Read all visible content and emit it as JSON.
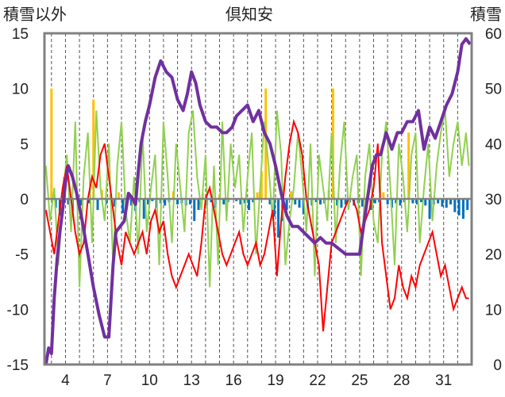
{
  "chart_data": {
    "type": "line",
    "title": "倶知安",
    "ylabel_left": "積雪以外",
    "ylabel_right": "積雪",
    "ylim_left": [
      -15,
      15
    ],
    "ylim_right": [
      0,
      60
    ],
    "yticks_left": [
      "15",
      "10",
      "5",
      "0",
      "-5",
      "-10",
      "-15"
    ],
    "yticks_right": [
      "60",
      "50",
      "40",
      "30",
      "20",
      "10",
      "0"
    ],
    "xlim": [
      2.5,
      33.0
    ],
    "xticks": [
      "4",
      "7",
      "10",
      "13",
      "16",
      "19",
      "22",
      "25",
      "28",
      "31"
    ],
    "grid": "vertical dashed daily",
    "colors": {
      "temperature": "#ff0000",
      "wind": "#92d050",
      "snow_depth": "#7030a0",
      "precipitation_pos": "#ffc000",
      "precipitation_neg": "#0070c0",
      "frame": "#808080"
    },
    "series": [
      {
        "name": "snow_depth",
        "axis": "right",
        "x": [
          2.6,
          2.8,
          3.0,
          3.2,
          3.4,
          3.6,
          3.8,
          4.0,
          4.2,
          4.5,
          4.8,
          5.2,
          5.6,
          6.0,
          6.4,
          6.8,
          7.1,
          7.4,
          7.6,
          7.9,
          8.2,
          8.5,
          8.8,
          9.0,
          9.2,
          9.4,
          9.7,
          10.0,
          10.4,
          10.8,
          11.2,
          11.6,
          12.0,
          12.4,
          12.7,
          13.0,
          13.3,
          13.6,
          14.0,
          14.4,
          14.8,
          15.2,
          15.5,
          15.9,
          16.2,
          16.6,
          17.0,
          17.4,
          17.8,
          18.2,
          18.6,
          19.0,
          19.4,
          19.8,
          20.2,
          20.6,
          21.0,
          21.4,
          21.8,
          22.2,
          22.6,
          23.0,
          23.5,
          24.0,
          24.5,
          25.0,
          25.5,
          25.9,
          26.2,
          26.5,
          26.9,
          27.3,
          27.7,
          28.0,
          28.4,
          28.8,
          29.2,
          29.6,
          30.0,
          30.4,
          30.8,
          31.2,
          31.6,
          32.0,
          32.3,
          32.6,
          32.9
        ],
        "values": [
          0,
          3,
          2,
          12,
          19,
          24,
          28,
          33,
          36,
          34,
          31,
          26,
          20,
          14,
          9,
          5,
          5,
          18,
          24,
          25,
          26,
          31,
          30,
          29,
          35,
          40,
          44,
          47,
          52,
          55,
          53,
          52,
          48,
          46,
          49,
          53,
          51,
          47,
          44,
          43,
          43,
          42,
          42,
          43,
          45,
          46,
          47,
          44,
          46,
          42,
          40,
          36,
          31,
          27,
          25,
          25,
          24,
          23,
          22,
          23,
          22,
          22,
          21,
          20,
          20,
          20,
          29,
          36,
          38,
          38,
          42,
          39,
          42,
          42,
          44,
          44,
          46,
          39,
          43,
          41,
          44,
          47,
          49,
          53,
          58,
          59,
          58
        ]
      },
      {
        "name": "temperature",
        "axis": "left",
        "x": [
          2.6,
          2.9,
          3.2,
          3.5,
          3.8,
          4.1,
          4.4,
          4.7,
          5.0,
          5.3,
          5.6,
          5.9,
          6.2,
          6.5,
          6.8,
          7.1,
          7.4,
          7.7,
          8.0,
          8.3,
          8.6,
          8.9,
          9.2,
          9.5,
          9.8,
          10.1,
          10.4,
          10.7,
          11.0,
          11.3,
          11.6,
          11.9,
          12.2,
          12.5,
          12.8,
          13.1,
          13.4,
          13.7,
          14.0,
          14.3,
          14.6,
          14.9,
          15.2,
          15.5,
          15.8,
          16.1,
          16.4,
          16.7,
          17.0,
          17.3,
          17.6,
          17.9,
          18.2,
          18.5,
          18.8,
          19.1,
          19.4,
          19.7,
          20.0,
          20.3,
          20.6,
          20.9,
          21.2,
          21.5,
          21.8,
          22.1,
          22.4,
          22.7,
          23.0,
          23.3,
          23.6,
          23.9,
          24.2,
          24.5,
          24.8,
          25.1,
          25.4,
          25.7,
          26.0,
          26.3,
          26.6,
          26.9,
          27.2,
          27.5,
          27.8,
          28.1,
          28.4,
          28.7,
          29.0,
          29.3,
          29.6,
          29.9,
          30.2,
          30.5,
          30.8,
          31.1,
          31.4,
          31.7,
          32.0,
          32.3,
          32.6,
          32.8
        ],
        "values": [
          -1,
          -3,
          -5,
          -2,
          1,
          3,
          0,
          -3,
          -5,
          -4,
          0,
          2,
          1,
          4,
          5,
          2,
          -1,
          -4,
          -6,
          -3,
          -4,
          -5,
          -4,
          -3,
          -5,
          -2,
          -1,
          -3,
          -2,
          -5,
          -7,
          -8,
          -7,
          -6,
          -5,
          -6,
          -7,
          -4,
          0,
          1,
          -1,
          -3,
          -5,
          -6,
          -5,
          -4,
          -3,
          -5,
          -6,
          -5,
          -4,
          -6,
          -5,
          -3,
          -1,
          -7,
          -2,
          2,
          5,
          7,
          6,
          4,
          0,
          -2,
          -4,
          -6,
          -12,
          -8,
          -4,
          -3,
          -2,
          -1,
          0,
          0,
          -1,
          -3,
          -2,
          -1,
          1,
          5,
          -4,
          -7,
          -10,
          -9,
          -6,
          -8,
          -9,
          -7,
          -8,
          -6,
          -5,
          -4,
          -3,
          -5,
          -7,
          -6,
          -8,
          -10,
          -9,
          -8,
          -9,
          -9
        ]
      },
      {
        "name": "wind",
        "axis": "left",
        "x": [
          2.6,
          2.9,
          3.2,
          3.5,
          3.8,
          4.1,
          4.4,
          4.7,
          5.0,
          5.3,
          5.6,
          5.9,
          6.2,
          6.5,
          6.8,
          7.1,
          7.4,
          7.7,
          8.0,
          8.3,
          8.6,
          8.9,
          9.2,
          9.5,
          9.8,
          10.1,
          10.4,
          10.7,
          11.0,
          11.3,
          11.6,
          11.9,
          12.2,
          12.5,
          12.8,
          13.1,
          13.4,
          13.7,
          14.0,
          14.3,
          14.6,
          14.9,
          15.2,
          15.5,
          15.8,
          16.1,
          16.4,
          16.7,
          17.0,
          17.3,
          17.6,
          17.9,
          18.2,
          18.5,
          18.8,
          19.1,
          19.4,
          19.7,
          20.0,
          20.3,
          20.6,
          20.9,
          21.2,
          21.5,
          21.8,
          22.1,
          22.4,
          22.7,
          23.0,
          23.3,
          23.6,
          23.9,
          24.2,
          24.5,
          24.8,
          25.1,
          25.4,
          25.7,
          26.0,
          26.3,
          26.6,
          26.9,
          27.2,
          27.5,
          27.8,
          28.1,
          28.4,
          28.7,
          29.0,
          29.3,
          29.6,
          29.9,
          30.2,
          30.5,
          30.8,
          31.1,
          31.4,
          31.7,
          32.0,
          32.3,
          32.6,
          32.8
        ],
        "values": [
          3,
          -2,
          1,
          -6,
          0,
          4,
          -3,
          7,
          -8,
          2,
          6,
          -4,
          8,
          1,
          -2,
          5,
          -6,
          3,
          7,
          -1,
          -4,
          2,
          -5,
          6,
          -3,
          1,
          4,
          -6,
          7,
          2,
          -4,
          5,
          1,
          -3,
          6,
          8,
          2,
          -1,
          4,
          -8,
          3,
          -6,
          7,
          -2,
          5,
          1,
          4,
          -3,
          2,
          6,
          -5,
          1,
          7,
          3,
          -2,
          8,
          4,
          -6,
          -2,
          1,
          6,
          2,
          -3,
          5,
          -7,
          4,
          1,
          -2,
          6,
          -4,
          3,
          7,
          -1,
          2,
          4,
          -7,
          2,
          5,
          -2,
          -4,
          4,
          7,
          1,
          -6,
          5,
          2,
          -3,
          4,
          6,
          -4,
          1,
          5,
          -2,
          3,
          6,
          8,
          2,
          5,
          7,
          3,
          6,
          3
        ]
      },
      {
        "name": "precipitation",
        "axis": "left",
        "x": [
          3.0,
          3.3,
          3.6,
          3.9,
          4.2,
          4.5,
          4.8,
          5.1,
          5.4,
          5.7,
          6.0,
          6.3,
          6.6,
          6.9,
          7.2,
          7.5,
          7.8,
          8.1,
          8.4,
          8.7,
          9.0,
          9.3,
          9.6,
          9.9,
          10.2,
          10.5,
          10.8,
          11.1,
          11.4,
          11.7,
          12.0,
          12.3,
          12.6,
          12.9,
          13.2,
          13.5,
          13.8,
          14.1,
          14.4,
          14.7,
          15.0,
          15.3,
          15.6,
          15.9,
          16.2,
          16.5,
          16.8,
          17.1,
          17.4,
          17.7,
          18.0,
          18.3,
          18.6,
          18.9,
          19.2,
          19.5,
          19.8,
          20.1,
          20.4,
          20.7,
          21.0,
          21.3,
          21.6,
          21.9,
          22.2,
          22.5,
          22.8,
          23.1,
          23.4,
          23.7,
          24.0,
          24.3,
          24.6,
          24.9,
          25.2,
          25.5,
          25.8,
          26.1,
          26.4,
          26.7,
          27.0,
          27.3,
          27.6,
          27.9,
          28.2,
          28.5,
          28.8,
          29.1,
          29.4,
          29.7,
          30.0,
          30.3,
          30.6,
          30.9,
          31.2,
          31.5,
          31.8,
          32.1,
          32.4,
          32.7
        ],
        "values": [
          10,
          -0.8,
          -1.5,
          2,
          -0.5,
          -1.2,
          0.5,
          -0.6,
          0,
          -0.4,
          9,
          -1.0,
          0.8,
          -0.5,
          0.4,
          -0.7,
          0.6,
          -1.3,
          -0.4,
          -0.6,
          -1.1,
          -0.3,
          -1.8,
          -0.5,
          -0.2,
          -0.8,
          -0.4,
          -0.6,
          -0.3,
          0.7,
          -0.5,
          -0.4,
          -0.6,
          -0.5,
          -2.0,
          -1.0,
          0.5,
          -0.6,
          -0.3,
          -0.8,
          0.4,
          -0.5,
          -0.3,
          0,
          -0.2,
          -0.5,
          -0.4,
          -1.0,
          -0.3,
          0.6,
          2.5,
          10,
          -0.5,
          -1.6,
          -3.5,
          -2.0,
          -1.0,
          0.7,
          -0.5,
          -0.8,
          -1.4,
          -1.0,
          -0.6,
          -0.3,
          -0.5,
          -0.4,
          0.8,
          10,
          -0.6,
          -0.8,
          -0.5,
          -0.3,
          -0.6,
          -0.4,
          -0.7,
          -0.5,
          -1.0,
          -0.4,
          -0.3,
          0.6,
          -0.5,
          -0.8,
          -0.4,
          -0.6,
          -0.3,
          6,
          -0.4,
          -0.5,
          -0.3,
          -0.6,
          -1.8,
          -0.5,
          -0.4,
          -0.7,
          -0.8,
          -0.5,
          -1.2,
          -1.5,
          -1.8,
          -1.0
        ]
      }
    ]
  }
}
